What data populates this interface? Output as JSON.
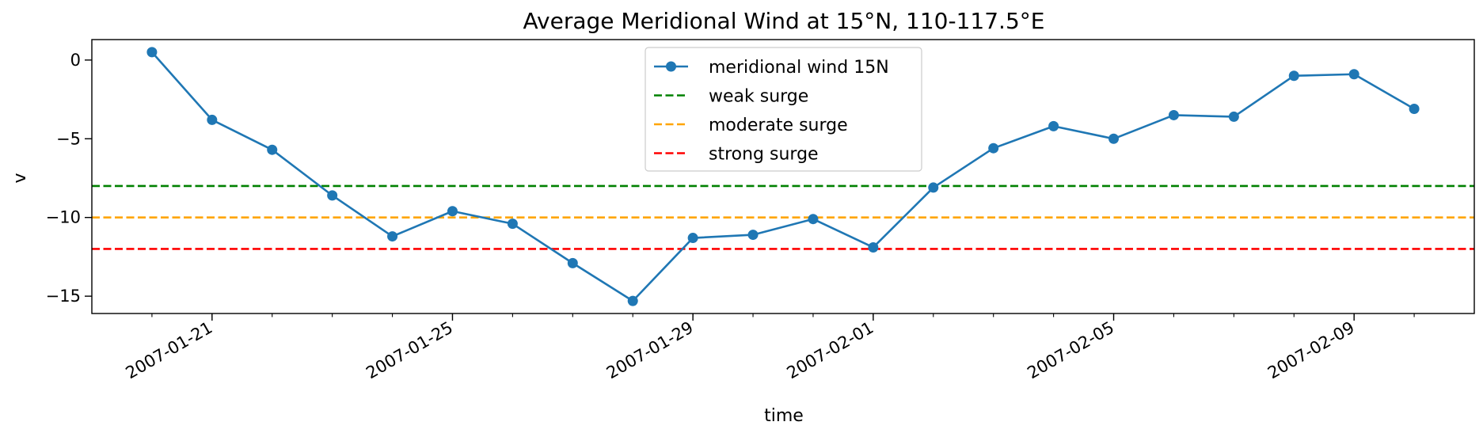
{
  "chart_data": {
    "type": "line",
    "title": "Average Meridional Wind at 15°N, 110-117.5°E",
    "xlabel": "time",
    "ylabel": "v",
    "x_type": "date",
    "xlim": [
      "2007-01-19",
      "2007-02-11"
    ],
    "ylim": [
      -16.1,
      1.3
    ],
    "xticks": [
      "2007-01-21",
      "2007-01-25",
      "2007-01-29",
      "2007-02-01",
      "2007-02-05",
      "2007-02-09"
    ],
    "yticks": [
      0,
      -5,
      -10,
      -15
    ],
    "grid": false,
    "legend_position": "upper center",
    "series": [
      {
        "name": "meridional wind 15N",
        "color": "#1f77b4",
        "style": "solid-marker",
        "x": [
          "2007-01-20",
          "2007-01-21",
          "2007-01-22",
          "2007-01-23",
          "2007-01-24",
          "2007-01-25",
          "2007-01-26",
          "2007-01-27",
          "2007-01-28",
          "2007-01-29",
          "2007-01-30",
          "2007-01-31",
          "2007-02-01",
          "2007-02-02",
          "2007-02-03",
          "2007-02-04",
          "2007-02-05",
          "2007-02-06",
          "2007-02-07",
          "2007-02-08",
          "2007-02-09",
          "2007-02-10"
        ],
        "y": [
          0.5,
          -3.8,
          -5.7,
          -8.6,
          -11.2,
          -9.6,
          -10.4,
          -12.9,
          -15.3,
          -11.3,
          -11.1,
          -10.1,
          -11.9,
          -8.1,
          -5.6,
          -4.2,
          -5.0,
          -3.5,
          -3.6,
          -1.0,
          -0.9,
          -3.1
        ]
      }
    ],
    "hlines": [
      {
        "name": "weak surge",
        "y": -8,
        "color": "#008000",
        "style": "dashed"
      },
      {
        "name": "moderate surge",
        "y": -10,
        "color": "#ffa500",
        "style": "dashed"
      },
      {
        "name": "strong surge",
        "y": -12,
        "color": "#ff0000",
        "style": "dashed"
      }
    ]
  }
}
